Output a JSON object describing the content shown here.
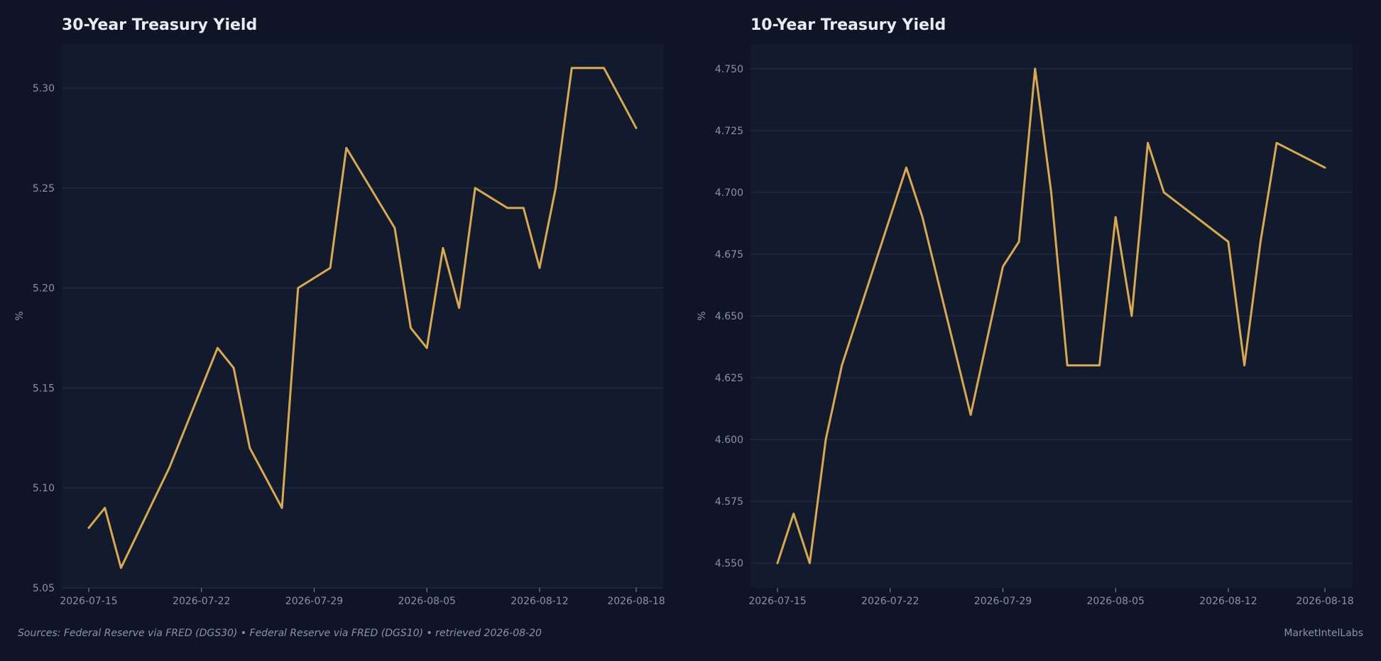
{
  "colors": {
    "page_bg": "#0f1526",
    "plot_bg": "#121b2e",
    "grid": "#263044",
    "line": "#d9a94e",
    "title": "#e8ebf2",
    "tick": "#8a93a6"
  },
  "footer": {
    "sources": "Sources: Federal Reserve via FRED (DGS30)  •  Federal Reserve via FRED (DGS10)  •  retrieved 2026-08-20",
    "brand": "MarketIntelLabs"
  },
  "chart_data": [
    {
      "type": "line",
      "title": "30-Year Treasury Yield",
      "ylabel": "%",
      "xlabel": "",
      "grid": true,
      "ylim": [
        5.05,
        5.322
      ],
      "yticks": [
        5.05,
        5.1,
        5.15,
        5.2,
        5.25,
        5.3
      ],
      "ytick_labels": [
        "5.05",
        "5.10",
        "5.15",
        "5.20",
        "5.25",
        "5.30"
      ],
      "xticks": [
        "2026-07-15",
        "2026-07-22",
        "2026-07-29",
        "2026-08-05",
        "2026-08-12",
        "2026-08-18"
      ],
      "series": [
        {
          "x": [
            "2026-07-15",
            "2026-07-16",
            "2026-07-17",
            "2026-07-20",
            "2026-07-23",
            "2026-07-24",
            "2026-07-25",
            "2026-07-27",
            "2026-07-28",
            "2026-07-30",
            "2026-07-31",
            "2026-08-03",
            "2026-08-04",
            "2026-08-05",
            "2026-08-06",
            "2026-08-07",
            "2026-08-08",
            "2026-08-10",
            "2026-08-11",
            "2026-08-12",
            "2026-08-13",
            "2026-08-14",
            "2026-08-16",
            "2026-08-18"
          ],
          "y": [
            5.08,
            5.09,
            5.06,
            5.11,
            5.17,
            5.16,
            5.12,
            5.09,
            5.2,
            5.21,
            5.27,
            5.23,
            5.18,
            5.17,
            5.22,
            5.19,
            5.25,
            5.24,
            5.24,
            5.21,
            5.25,
            5.31,
            5.31,
            5.28
          ]
        }
      ]
    },
    {
      "type": "line",
      "title": "10-Year Treasury Yield",
      "ylabel": "%",
      "xlabel": "",
      "grid": true,
      "ylim": [
        4.54,
        4.76
      ],
      "yticks": [
        4.55,
        4.575,
        4.6,
        4.625,
        4.65,
        4.675,
        4.7,
        4.725,
        4.75
      ],
      "ytick_labels": [
        "4.550",
        "4.575",
        "4.600",
        "4.625",
        "4.650",
        "4.675",
        "4.700",
        "4.725",
        "4.750"
      ],
      "xticks": [
        "2026-07-15",
        "2026-07-22",
        "2026-07-29",
        "2026-08-05",
        "2026-08-12",
        "2026-08-18"
      ],
      "series": [
        {
          "x": [
            "2026-07-15",
            "2026-07-16",
            "2026-07-17",
            "2026-07-18",
            "2026-07-19",
            "2026-07-23",
            "2026-07-24",
            "2026-07-27",
            "2026-07-29",
            "2026-07-30",
            "2026-07-31",
            "2026-08-01",
            "2026-08-02",
            "2026-08-04",
            "2026-08-05",
            "2026-08-06",
            "2026-08-07",
            "2026-08-08",
            "2026-08-12",
            "2026-08-13",
            "2026-08-14",
            "2026-08-15",
            "2026-08-18"
          ],
          "y": [
            4.55,
            4.57,
            4.55,
            4.6,
            4.63,
            4.71,
            4.69,
            4.61,
            4.67,
            4.68,
            4.75,
            4.7,
            4.63,
            4.63,
            4.69,
            4.65,
            4.72,
            4.7,
            4.68,
            4.63,
            4.68,
            4.72,
            4.71
          ]
        }
      ]
    }
  ]
}
